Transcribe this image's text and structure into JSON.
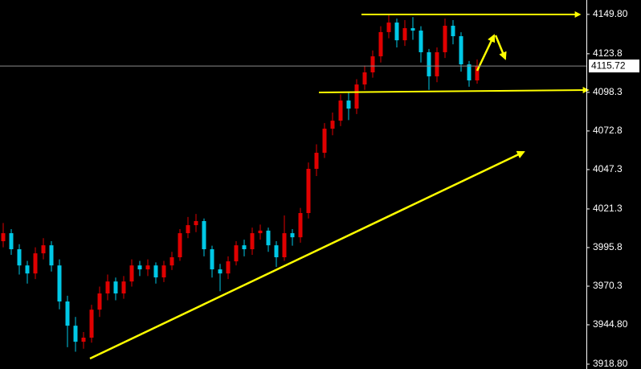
{
  "chart_data": {
    "type": "candlestick",
    "open": [
      4000.0,
      4005.3,
      3994.7,
      3984.0,
      3978.7,
      3992.0,
      3997.3,
      3984.0,
      3960.2,
      3944.2,
      3933.6,
      3936.3,
      3954.8,
      3965.5,
      3973.4,
      3965.5,
      3973.4,
      3984.0,
      3981.4,
      3984.0,
      3976.1,
      3984.0,
      3989.4,
      4005.3,
      4010.6,
      4013.3,
      3994.7,
      3981.4,
      3978.7,
      3986.7,
      3997.3,
      3994.7,
      4005.3,
      4007.0,
      3997.3,
      3989.4,
      4005.3,
      4002.6,
      4018.6,
      4047.8,
      4058.4,
      4074.3,
      4079.6,
      4092.9,
      4087.6,
      4103.5,
      4111.5,
      4122.1,
      4138.1,
      4144.4,
      4132.7,
      4140.7,
      4139.1,
      4124.8,
      4108.9,
      4124.8,
      4142.3,
      4135.4,
      4116.8,
      4106.2
    ],
    "high": [
      4012.0,
      4008.0,
      3998.0,
      3987.0,
      3996.0,
      4002.0,
      4000.0,
      3988.0,
      3964.0,
      3950.0,
      3940.0,
      3958.0,
      3970.0,
      3978.0,
      3976.0,
      3977.0,
      3988.0,
      3987.0,
      3988.0,
      3986.0,
      3987.0,
      3993.0,
      4008.0,
      4016.0,
      4018.0,
      4015.0,
      3997.0,
      3985.0,
      3990.0,
      4000.0,
      4001.0,
      4009.0,
      4011.0,
      4009.0,
      4000.0,
      4017.0,
      4008.0,
      4022.0,
      4052.0,
      4064.0,
      4078.0,
      4085.0,
      4097.0,
      4098.0,
      4107.0,
      4116.0,
      4126.0,
      4142.0,
      4150.0,
      4147.0,
      4146.0,
      4148.0,
      4142.0,
      4127.0,
      4128.0,
      4147.0,
      4146.0,
      4138.0,
      4119.0,
      4120.0
    ],
    "low": [
      3996.0,
      3991.0,
      3978.0,
      3972.0,
      3975.0,
      3988.0,
      3980.0,
      3955.0,
      3930.0,
      3927.0,
      3929.0,
      3933.0,
      3950.0,
      3961.0,
      3961.0,
      3962.0,
      3970.0,
      3977.0,
      3977.0,
      3972.0,
      3973.0,
      3981.0,
      3987.0,
      4002.0,
      4006.0,
      3990.0,
      3976.0,
      3967.0,
      3975.0,
      3984.0,
      3990.0,
      3991.0,
      4001.0,
      3993.0,
      3983.0,
      3987.0,
      3997.0,
      3999.0,
      4015.0,
      4043.0,
      4055.0,
      4070.0,
      4076.0,
      4080.0,
      4084.0,
      4100.0,
      4108.0,
      4118.0,
      4134.0,
      4128.0,
      4129.0,
      4133.0,
      4118.0,
      4100.0,
      4105.0,
      4121.0,
      4130.0,
      4112.0,
      4102.0,
      4104.0
    ],
    "close": [
      4005.3,
      3994.7,
      3984.0,
      3978.7,
      3992.0,
      3997.3,
      3984.0,
      3960.2,
      3944.2,
      3933.6,
      3936.3,
      3954.8,
      3965.5,
      3973.4,
      3965.5,
      3973.4,
      3984.0,
      3981.4,
      3984.0,
      3976.1,
      3984.0,
      3989.4,
      4005.3,
      4010.6,
      4013.3,
      3994.7,
      3981.4,
      3978.7,
      3986.7,
      3997.3,
      3994.7,
      4005.3,
      4007.0,
      3997.3,
      3989.4,
      4005.3,
      4002.6,
      4018.6,
      4047.8,
      4058.4,
      4074.3,
      4079.6,
      4092.9,
      4087.6,
      4103.5,
      4111.5,
      4122.1,
      4138.1,
      4144.4,
      4132.7,
      4140.7,
      4139.1,
      4124.8,
      4108.9,
      4124.8,
      4142.3,
      4135.4,
      4116.8,
      4106.2,
      4115.7
    ],
    "up_color": "#e00000",
    "down_color": "#00c8e6",
    "ylim": [
      3915.6,
      4159.3
    ],
    "yticks": [
      {
        "value": 3918.8,
        "label": "3918.80"
      },
      {
        "value": 3944.8,
        "label": "3944.80"
      },
      3970.3,
      3995.8,
      4021.3,
      4047.3,
      4072.8,
      4098.3,
      4123.8,
      {
        "value": 4149.8,
        "label": "4149.80"
      }
    ],
    "last_price": 4115.72
  }
}
